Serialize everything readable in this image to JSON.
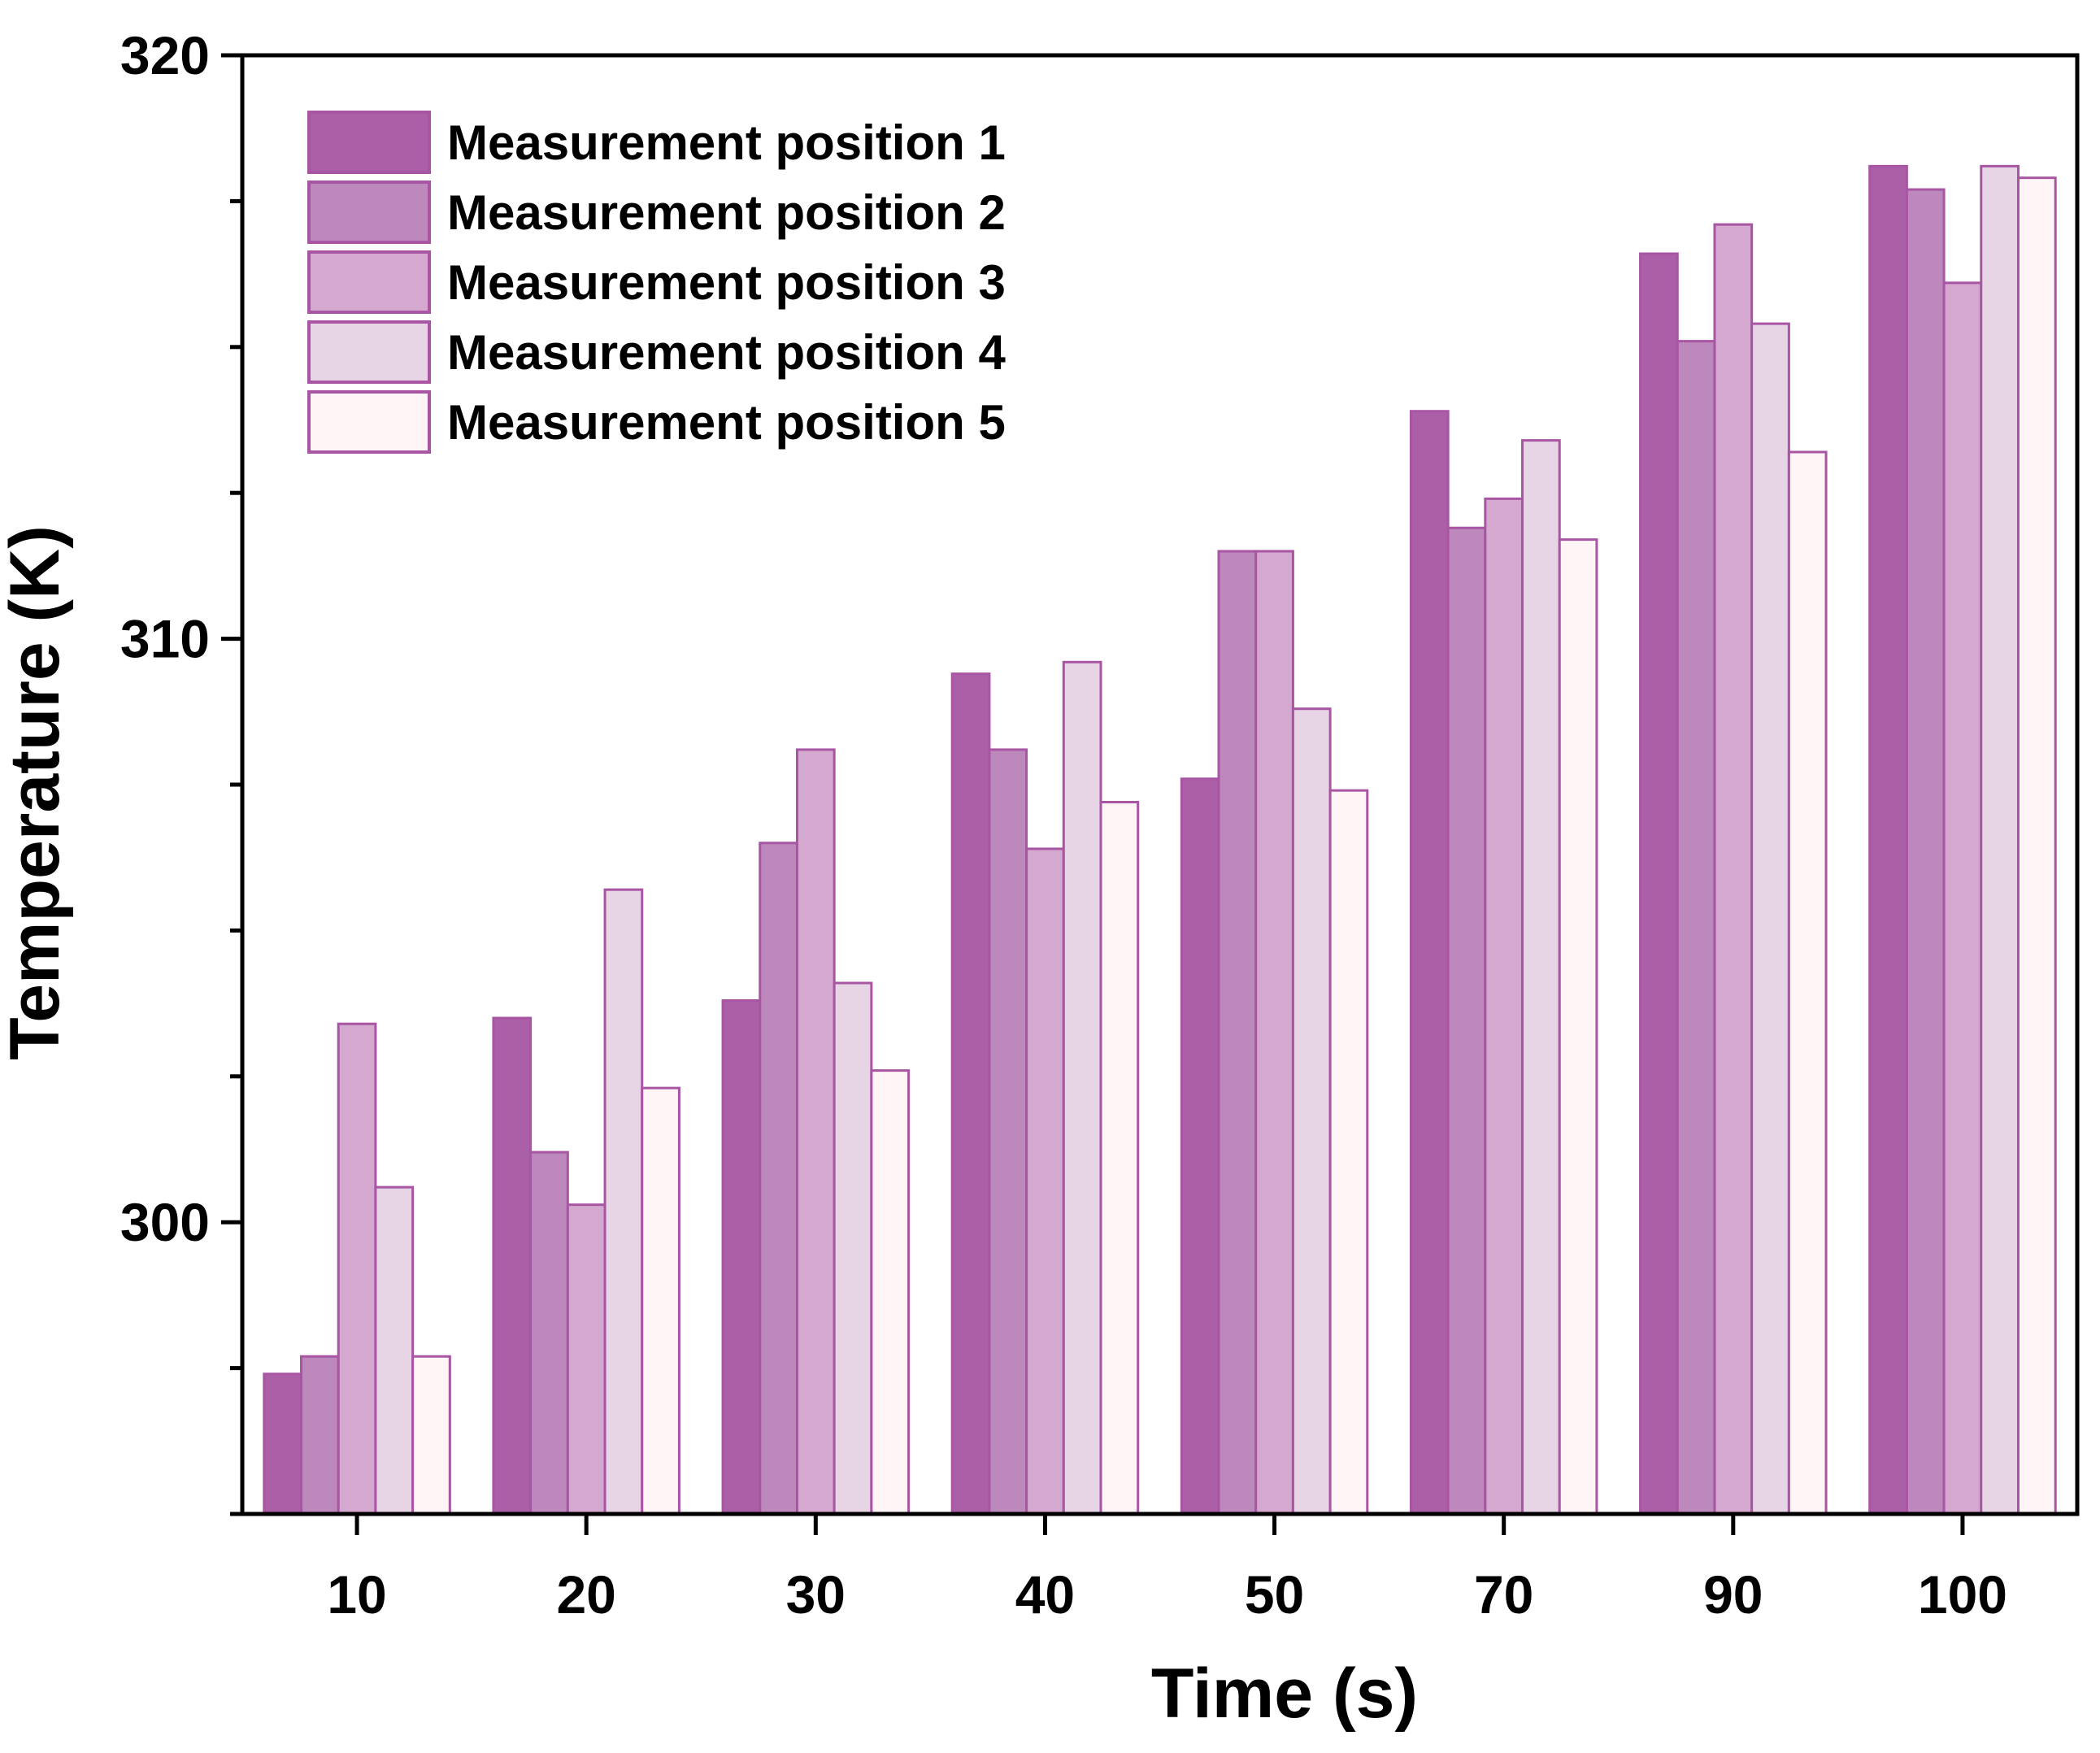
{
  "chart_data": {
    "type": "bar",
    "xlabel": "Time (s)",
    "ylabel": "Temperature (K)",
    "ylim": [
      295,
      320
    ],
    "yticks": [
      "300",
      "310",
      "320"
    ],
    "categories": [
      "10",
      "20",
      "30",
      "40",
      "50",
      "70",
      "90",
      "100"
    ],
    "legend_position": "top-left",
    "grid": false,
    "border_color": "#a855a3",
    "series": [
      {
        "name": "Measurement position 1",
        "color": "#ab5fa6",
        "values": [
          297.4,
          303.5,
          303.8,
          309.4,
          307.6,
          313.9,
          316.6,
          318.1
        ]
      },
      {
        "name": "Measurement position 2",
        "color": "#bd88bb",
        "values": [
          297.7,
          301.2,
          306.5,
          308.1,
          311.5,
          311.9,
          315.1,
          317.7
        ]
      },
      {
        "name": "Measurement position 3",
        "color": "#d5a8cf",
        "values": [
          303.4,
          300.3,
          308.1,
          306.4,
          311.5,
          312.4,
          317.1,
          316.1
        ]
      },
      {
        "name": "Measurement position 4",
        "color": "#e7d5e6",
        "values": [
          300.6,
          305.7,
          304.1,
          309.6,
          308.8,
          313.4,
          315.4,
          318.1
        ]
      },
      {
        "name": "Measurement position 5",
        "color": "#fff5f6",
        "values": [
          297.7,
          302.3,
          302.6,
          307.2,
          307.4,
          311.7,
          313.2,
          317.9
        ]
      }
    ]
  }
}
